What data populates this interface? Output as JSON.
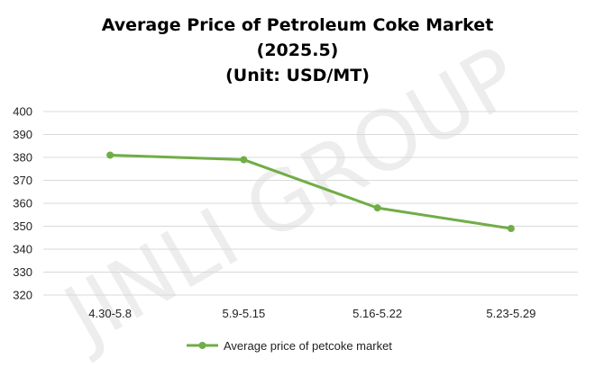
{
  "chart_data": {
    "type": "line",
    "title_lines": [
      "Average Price of Petroleum Coke Market",
      "(2025.5)",
      "(Unit: USD/MT)"
    ],
    "categories": [
      "4.30-5.8",
      "5.9-5.15",
      "5.16-5.22",
      "5.23-5.29"
    ],
    "series": [
      {
        "name": "Average price of petcoke market",
        "values": [
          381,
          379,
          358,
          349
        ],
        "color": "#70ad47"
      }
    ],
    "ylim": [
      320,
      400
    ],
    "yticks": [
      320,
      330,
      340,
      350,
      360,
      370,
      380,
      390,
      400
    ],
    "grid": true,
    "legend": "bottom",
    "xlabel": "",
    "ylabel": ""
  },
  "watermark": "JINLI GROUP"
}
